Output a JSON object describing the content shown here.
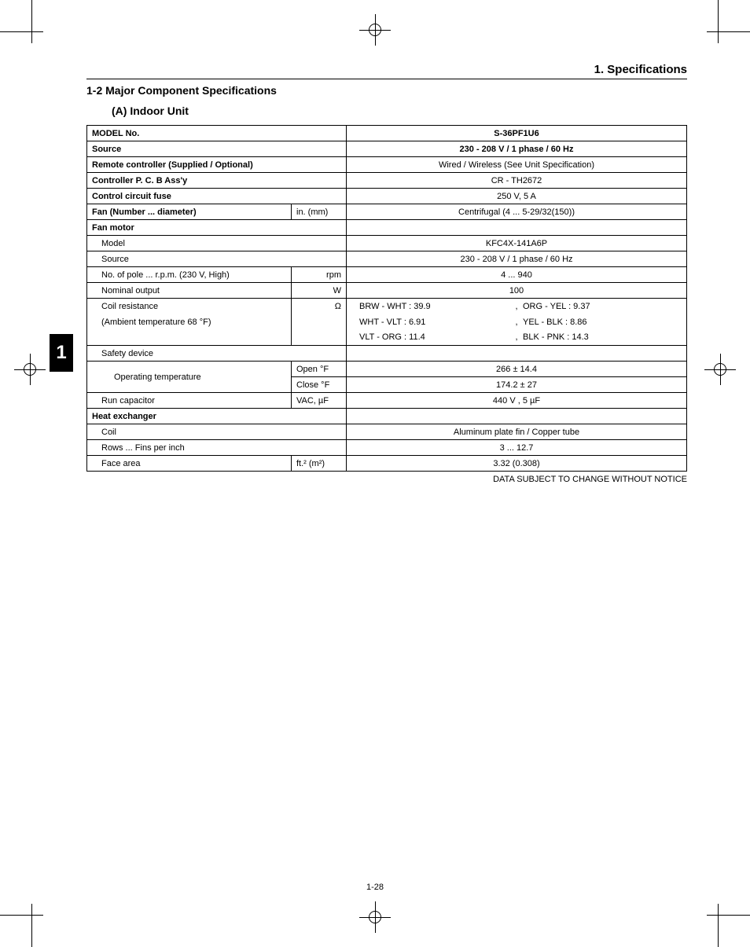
{
  "header": {
    "right": "1. Specifications"
  },
  "section_title": "1-2  Major Component Specifications",
  "subsection_title": "(A)  Indoor Unit",
  "footer_note": "DATA SUBJECT TO CHANGE WITHOUT NOTICE",
  "page_number": "1-28",
  "side_tab": "1",
  "table": {
    "model_no_label": "MODEL No.",
    "model_no_value": "S-36PF1U6",
    "source_label": "Source",
    "source_value": "230 - 208 V / 1 phase / 60 Hz",
    "remote_label": "Remote  controller (Supplied / Optional)",
    "remote_value": "Wired / Wireless (See Unit Specification)",
    "controller_label": "Controller P. C. B Ass'y",
    "controller_value": "CR - TH2672",
    "fuse_label": "Control circuit fuse",
    "fuse_value": "250 V, 5 A",
    "fan_label": "Fan (Number ... diameter)",
    "fan_unit": "in.      (mm)",
    "fan_value": "Centrifugal (4 ... 5-29/32(150))",
    "fan_motor_label": "Fan motor",
    "model_label": "Model",
    "model_value": "KFC4X-141A6P",
    "source2_label": "Source",
    "source2_value": "230 - 208 V / 1 phase / 60 Hz",
    "pole_label": "No. of pole ... r.p.m. (230 V, High)",
    "pole_unit": "rpm",
    "pole_value": "4 ... 940",
    "nominal_label": "Nominal output",
    "nominal_unit": "W",
    "nominal_value": "100",
    "coil_res_label": "Coil resistance",
    "coil_res_unit": "Ω",
    "coil_res_row1_a": "BRW  -  WHT    :      39.9",
    "coil_res_row1_b": "ORG  -  YEL      :       9.37",
    "ambient_label": "(Ambient temperature 68 °F)",
    "coil_res_row2_a": "WHT  -  VLT      :       6.91",
    "coil_res_row2_b": "YEL   -  BLK      :       8.86",
    "coil_res_row3_a": "VLT   -  ORG     :     11.4",
    "coil_res_row3_b": "BLK   -  PNK     :     14.3",
    "safety_label": "Safety device",
    "optemp_label": "Operating temperature",
    "optemp_open_label": "Open        °F",
    "optemp_open_value": "266    ±   14.4",
    "optemp_close_label": "Close        °F",
    "optemp_close_value": "174.2   ±   27",
    "runcap_label": "Run capacitor",
    "runcap_unit": "VAC,       µF",
    "runcap_value": "440 V , 5 µF",
    "heat_label": "Heat exchanger",
    "coil_label": "Coil",
    "coil_value": "Aluminum plate fin / Copper tube",
    "rows_label": "Rows ... Fins per inch",
    "rows_value": "3 ... 12.7",
    "face_label": "Face area",
    "face_unit": "ft.²        (m²)",
    "face_value": "3.32 (0.308)"
  }
}
